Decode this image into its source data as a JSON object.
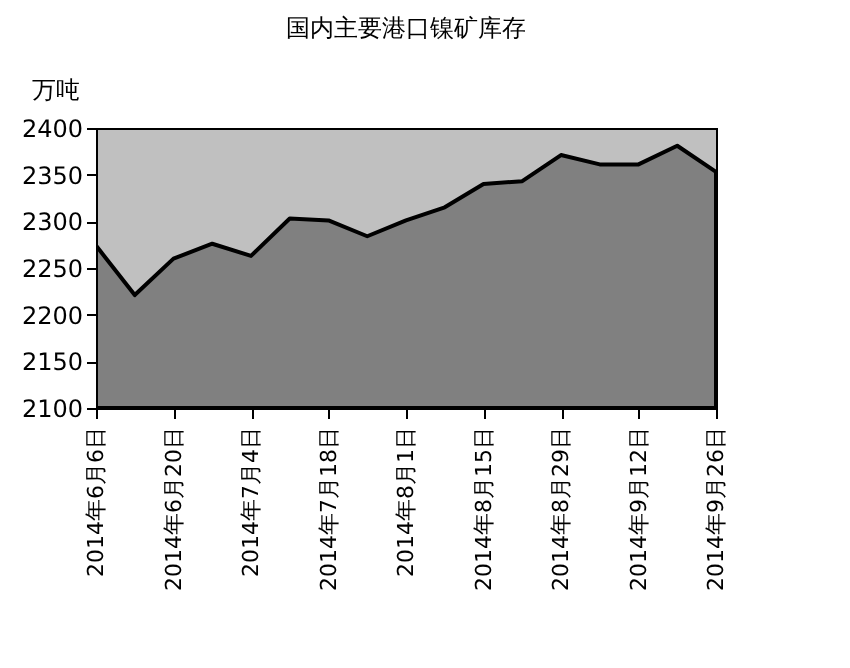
{
  "chart_data": {
    "type": "area",
    "title": "国内主要港口镍矿库存",
    "ylabel": "万吨",
    "x": [
      "2014-06-06",
      "2014-06-13",
      "2014-06-20",
      "2014-06-27",
      "2014-07-04",
      "2014-07-11",
      "2014-07-18",
      "2014-07-25",
      "2014-08-01",
      "2014-08-08",
      "2014-08-15",
      "2014-08-22",
      "2014-08-29",
      "2014-09-05",
      "2014-09-12",
      "2014-09-19",
      "2014-09-26"
    ],
    "series": [
      {
        "color": "#808080",
        "values": [
          2274,
          2221,
          2260,
          2276,
          2263,
          2303,
          2301,
          2284,
          2301,
          2315,
          2340,
          2343,
          2371,
          2361,
          2361,
          2381,
          2353
        ]
      }
    ],
    "xlim": [
      "2014-06-06",
      "2014-09-26"
    ],
    "xticks": [
      {
        "value": "2014-06-06",
        "label": "2014年6月6日"
      },
      {
        "value": "2014-06-20",
        "label": "2014年6月20日"
      },
      {
        "value": "2014-07-04",
        "label": "2014年7月4日"
      },
      {
        "value": "2014-07-18",
        "label": "2014年7月18日"
      },
      {
        "value": "2014-08-01",
        "label": "2014年8月1日"
      },
      {
        "value": "2014-08-15",
        "label": "2014年8月15日"
      },
      {
        "value": "2014-08-29",
        "label": "2014年8月29日"
      },
      {
        "value": "2014-09-12",
        "label": "2014年9月12日"
      },
      {
        "value": "2014-09-26",
        "label": "2014年9月26日"
      }
    ],
    "ylim": [
      2100,
      2400
    ],
    "yticks": [
      2100,
      2150,
      2200,
      2250,
      2300,
      2350,
      2400
    ],
    "grid": false
  }
}
